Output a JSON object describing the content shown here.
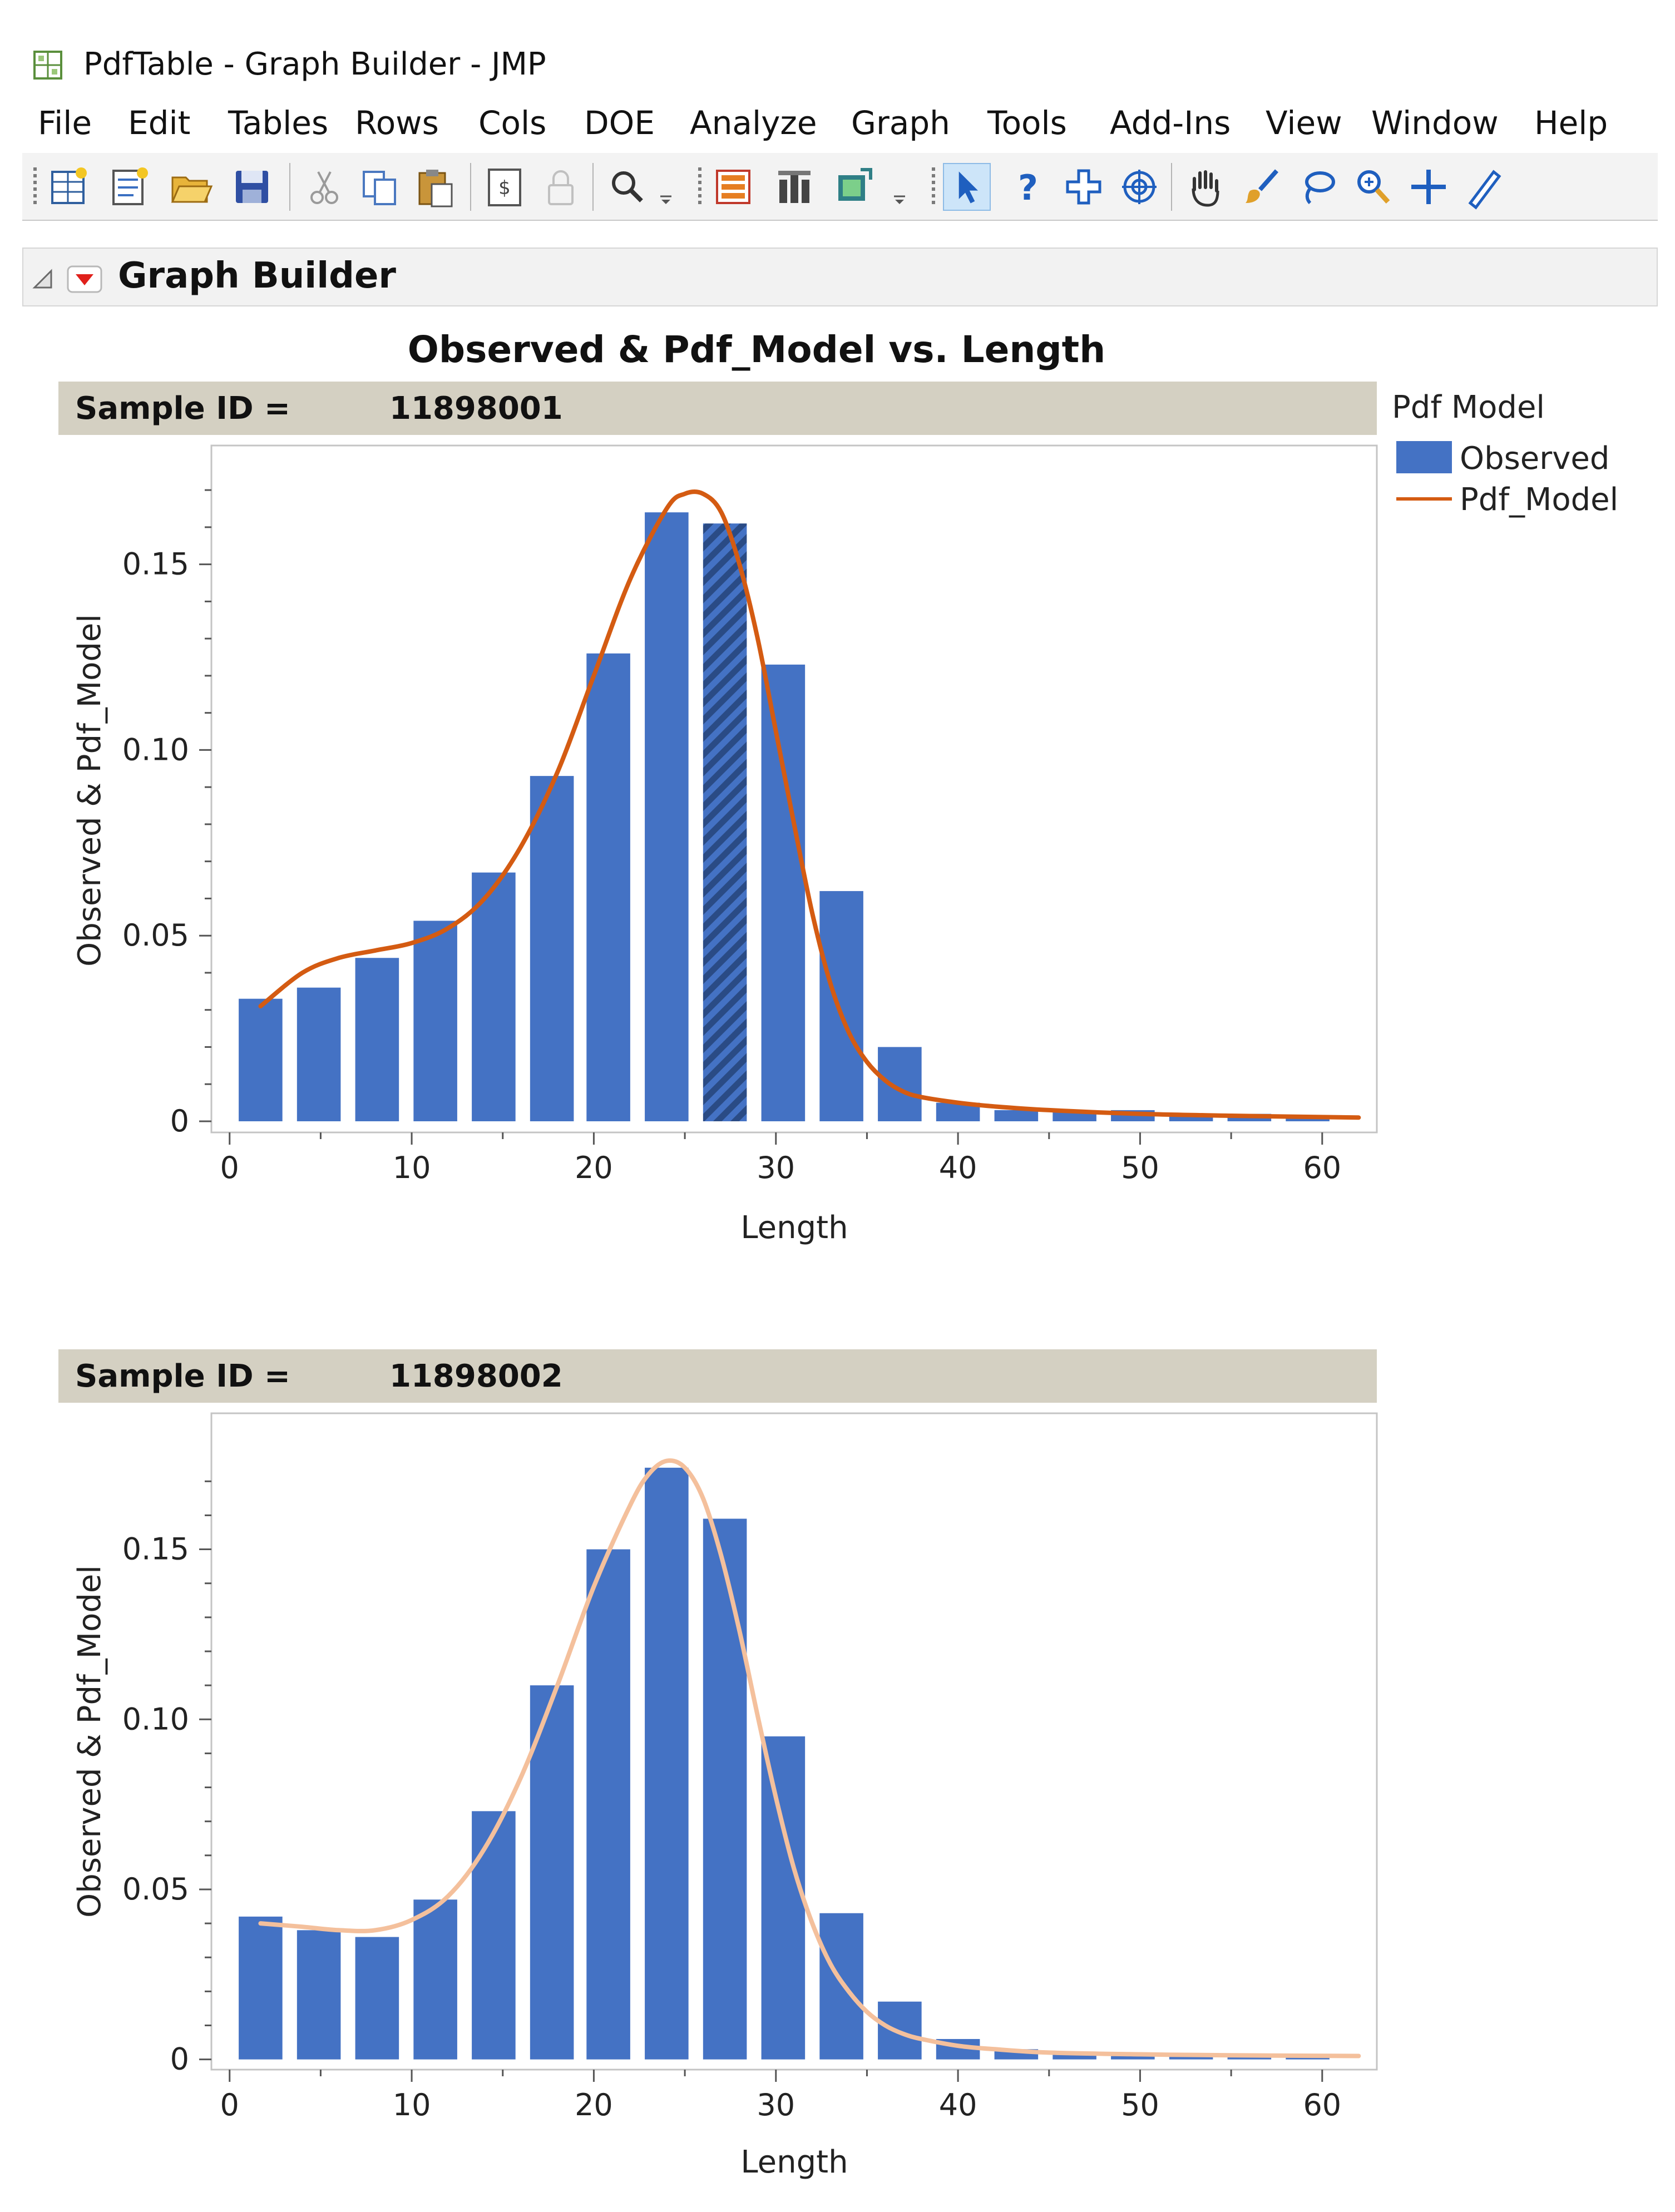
{
  "window": {
    "title": "PdfTable - Graph Builder - JMP"
  },
  "menu": [
    "File",
    "Edit",
    "Tables",
    "Rows",
    "Cols",
    "DOE",
    "Analyze",
    "Graph",
    "Tools",
    "Add-Ins",
    "View",
    "Window",
    "Help"
  ],
  "toolbar": {
    "icons": [
      "new-data-table-icon",
      "new-script-icon",
      "open-icon",
      "save-icon",
      "cut-icon",
      "copy-icon",
      "paste-icon",
      "journal-icon",
      "lock-icon",
      "search-icon",
      "data-table-icon",
      "distribution-icon",
      "graph-builder-icon",
      "arrow-tool-icon",
      "help-tool-icon",
      "selection-tool-icon",
      "crosshair-tool-icon",
      "hand-tool-icon",
      "brush-tool-icon",
      "lasso-tool-icon",
      "magnifier-tool-icon",
      "annotate-tool-icon",
      "line-tool-icon"
    ]
  },
  "outline": {
    "title": "Graph Builder"
  },
  "colors": {
    "bar": "#4472c4",
    "line_panel1": "#d45b12",
    "line_panel2": "#f4c09c",
    "panel_header": "#d4d0c2"
  },
  "legend": {
    "title": "Pdf Model",
    "items": [
      {
        "label": "Observed",
        "kind": "bar"
      },
      {
        "label": "Pdf_Model",
        "kind": "line"
      }
    ]
  },
  "chart_data": [
    {
      "type": "bar",
      "title": "Observed & Pdf_Model vs. Length",
      "panel_label": "Sample ID =",
      "panel_value": "11898001",
      "xlabel": "Length",
      "ylabel": "Observed & Pdf_Model",
      "xlim": [
        -1,
        63
      ],
      "ylim": [
        -0.003,
        0.182
      ],
      "xticks": [
        0,
        10,
        20,
        30,
        40,
        50,
        60
      ],
      "xtick_labels": [
        "0",
        "10",
        "20",
        "30",
        "40",
        "50",
        "60"
      ],
      "yticks": [
        0,
        0.05,
        0.1,
        0.15
      ],
      "ytick_labels": [
        "0",
        "0.05",
        "0.10",
        "0.15"
      ],
      "bar_width": 2.4,
      "highlighted_bar_index": 8,
      "series": [
        {
          "name": "Observed",
          "kind": "bar",
          "x": [
            1.7,
            4.9,
            8.1,
            11.3,
            14.5,
            17.7,
            20.8,
            24,
            27.2,
            30.4,
            33.6,
            36.8,
            40,
            43.2,
            46.4,
            49.6,
            52.8,
            56,
            59.2
          ],
          "values": [
            0.033,
            0.036,
            0.044,
            0.054,
            0.067,
            0.093,
            0.126,
            0.164,
            0.161,
            0.123,
            0.062,
            0.02,
            0.005,
            0.003,
            0.003,
            0.003,
            0.002,
            0.002,
            0.001
          ]
        },
        {
          "name": "Pdf_Model",
          "kind": "line",
          "x": [
            1.7,
            4,
            6,
            8,
            10,
            12,
            14,
            16,
            18,
            20,
            22,
            24,
            25,
            26,
            27,
            28,
            29,
            30,
            31,
            32,
            33,
            34,
            35,
            36,
            37,
            38,
            40,
            42,
            45,
            50,
            55,
            62
          ],
          "values": [
            0.031,
            0.04,
            0.044,
            0.046,
            0.048,
            0.052,
            0.06,
            0.074,
            0.094,
            0.12,
            0.146,
            0.165,
            0.169,
            0.169,
            0.164,
            0.15,
            0.13,
            0.105,
            0.08,
            0.056,
            0.037,
            0.024,
            0.016,
            0.011,
            0.008,
            0.0065,
            0.005,
            0.004,
            0.003,
            0.002,
            0.0015,
            0.001
          ]
        }
      ]
    },
    {
      "type": "bar",
      "panel_label": "Sample ID =",
      "panel_value": "11898002",
      "xlabel": "Length",
      "ylabel": "Observed & Pdf_Model",
      "xlim": [
        -1,
        63
      ],
      "ylim": [
        -0.003,
        0.19
      ],
      "xticks": [
        0,
        10,
        20,
        30,
        40,
        50,
        60
      ],
      "xtick_labels": [
        "0",
        "10",
        "20",
        "30",
        "40",
        "50",
        "60"
      ],
      "yticks": [
        0,
        0.05,
        0.1,
        0.15
      ],
      "ytick_labels": [
        "0",
        "0.05",
        "0.10",
        "0.15"
      ],
      "bar_width": 2.4,
      "series": [
        {
          "name": "Observed",
          "kind": "bar",
          "x": [
            1.7,
            4.9,
            8.1,
            11.3,
            14.5,
            17.7,
            20.8,
            24,
            27.2,
            30.4,
            33.6,
            36.8,
            40,
            43.2,
            46.4,
            49.6,
            52.8,
            56,
            59.2
          ],
          "values": [
            0.042,
            0.038,
            0.036,
            0.047,
            0.073,
            0.11,
            0.15,
            0.174,
            0.159,
            0.095,
            0.043,
            0.017,
            0.006,
            0.003,
            0.002,
            0.002,
            0.001,
            0.001,
            0.001
          ]
        },
        {
          "name": "Pdf_Model",
          "kind": "line",
          "x": [
            1.7,
            4,
            6,
            8,
            10,
            12,
            14,
            16,
            18,
            20,
            22,
            23,
            24,
            25,
            26,
            27,
            28,
            29,
            30,
            31,
            32,
            33,
            34,
            35,
            36,
            37,
            38,
            40,
            42,
            45,
            50,
            55,
            62
          ],
          "values": [
            0.04,
            0.039,
            0.038,
            0.038,
            0.041,
            0.048,
            0.062,
            0.083,
            0.11,
            0.139,
            0.163,
            0.172,
            0.176,
            0.174,
            0.165,
            0.148,
            0.126,
            0.101,
            0.077,
            0.056,
            0.04,
            0.028,
            0.02,
            0.014,
            0.01,
            0.0075,
            0.006,
            0.004,
            0.003,
            0.002,
            0.0015,
            0.0012,
            0.001
          ]
        }
      ]
    }
  ]
}
